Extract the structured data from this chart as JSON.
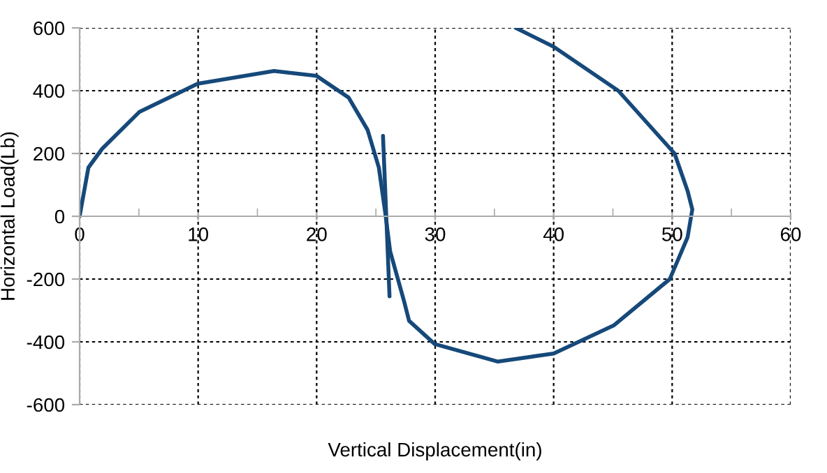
{
  "chart_data": {
    "type": "line",
    "xlabel": "Vertical Displacement(in)",
    "ylabel": "Horizontal Load(Lb)",
    "series": [
      {
        "color": "#16497a",
        "x": [
          0,
          0.74,
          1.9,
          5.06,
          9.96,
          16.4,
          20,
          22.7,
          24.3,
          25.25,
          25.8,
          26.2,
          27.4,
          27.8,
          29.96,
          35.3,
          40,
          45.06,
          49.8,
          51.3,
          51.7,
          51.3,
          50.2,
          45.45,
          40,
          36.8
        ],
        "values": [
          0,
          155,
          215,
          333,
          422,
          463,
          447,
          378,
          275,
          155,
          8,
          -111,
          -274,
          -333,
          -407,
          -463,
          -437,
          -348,
          -200,
          -67,
          22,
          81,
          200,
          400,
          540,
          600
        ]
      },
      {
        "color": "#16497a",
        "x": [
          25.6,
          26.15
        ],
        "values": [
          256,
          -255
        ]
      }
    ],
    "xlim": [
      0,
      60
    ],
    "ylim": [
      -600,
      600
    ],
    "xticks": [
      0,
      10,
      20,
      30,
      40,
      50,
      60
    ],
    "yticks": [
      -600,
      -400,
      -200,
      0,
      200,
      400,
      600
    ],
    "grid": true
  }
}
